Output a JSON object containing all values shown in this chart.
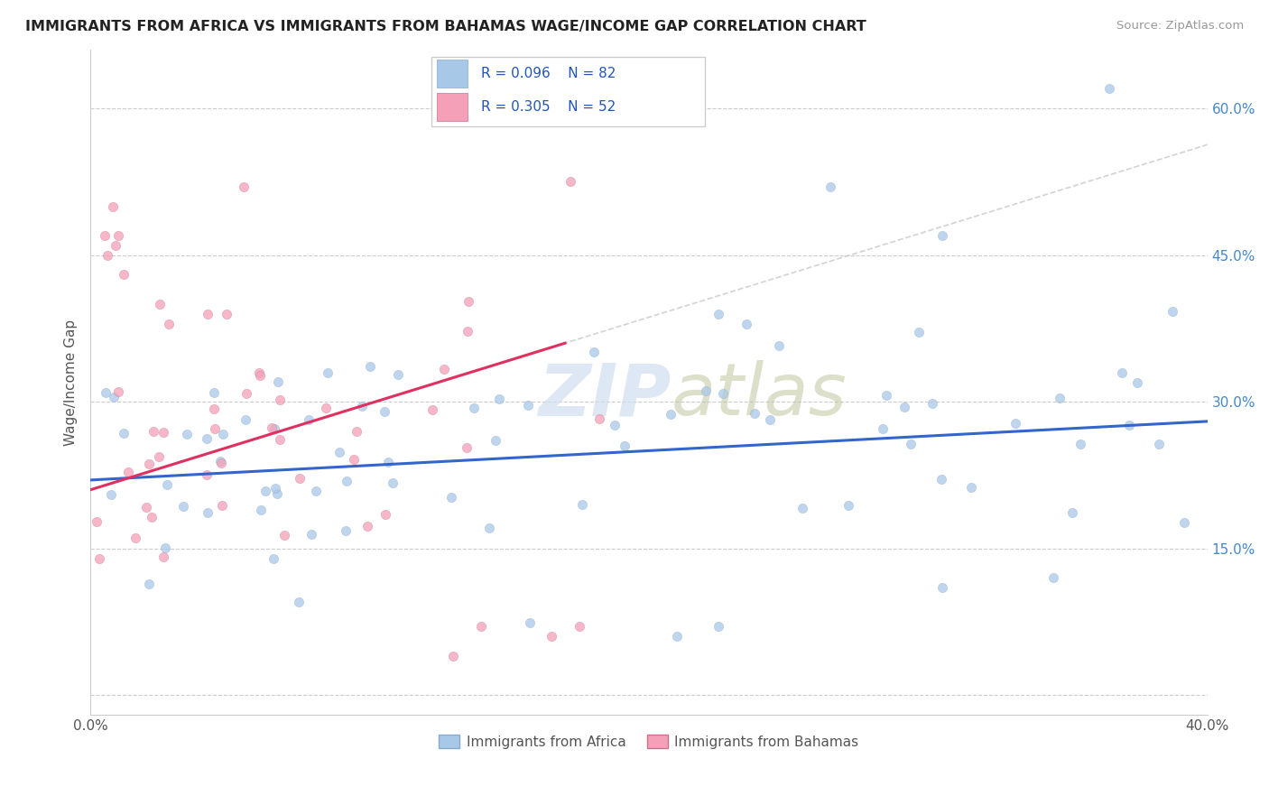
{
  "title": "IMMIGRANTS FROM AFRICA VS IMMIGRANTS FROM BAHAMAS WAGE/INCOME GAP CORRELATION CHART",
  "source": "Source: ZipAtlas.com",
  "ylabel": "Wage/Income Gap",
  "xlim": [
    0.0,
    0.4
  ],
  "ylim": [
    -0.02,
    0.66
  ],
  "africa_color": "#a8c8e8",
  "africa_color_edge": "#88aacc",
  "bahamas_color": "#f4a0b8",
  "bahamas_color_edge": "#cc7090",
  "africa_line_color": "#3366cc",
  "bahamas_line_color": "#e03060",
  "dashed_line_color": "#cccccc",
  "r_africa": 0.096,
  "n_africa": 82,
  "r_bahamas": 0.305,
  "n_bahamas": 52,
  "legend_label_africa": "Immigrants from Africa",
  "legend_label_bahamas": "Immigrants from Bahamas",
  "watermark_zip": "ZIP",
  "watermark_atlas": "atlas",
  "ytick_color": "#4488cc"
}
